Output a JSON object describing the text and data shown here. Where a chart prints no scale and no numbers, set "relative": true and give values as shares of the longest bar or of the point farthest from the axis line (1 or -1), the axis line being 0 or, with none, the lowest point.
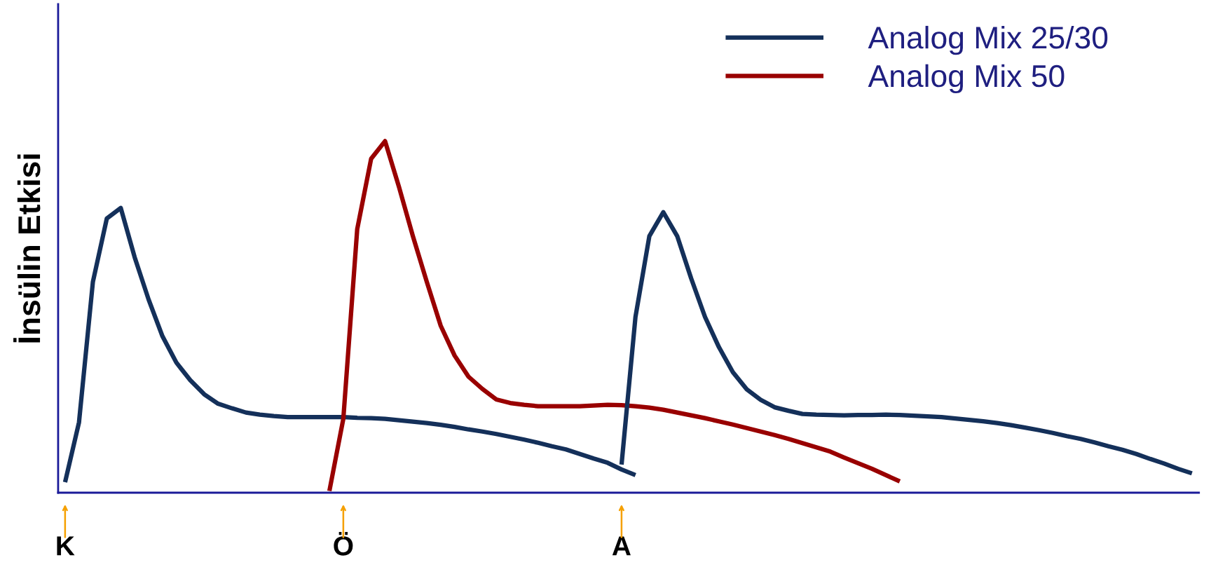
{
  "chart_data": {
    "type": "line",
    "relative": true,
    "ylabel": "İnsülin Etkisi",
    "categories": [
      "K",
      null,
      null,
      null,
      null,
      null,
      null,
      null,
      null,
      null,
      null,
      null,
      null,
      null,
      null,
      null,
      null,
      null,
      null,
      null,
      "Ö",
      null,
      null,
      null,
      null,
      null,
      null,
      null,
      null,
      null,
      null,
      null,
      null,
      null,
      null,
      null,
      null,
      null,
      null,
      null,
      "A",
      null,
      null,
      null,
      null,
      null,
      null,
      null,
      null,
      null,
      null,
      null,
      null,
      null,
      null,
      null,
      null,
      null,
      null,
      null,
      null,
      null,
      null,
      null,
      null,
      null,
      null,
      null,
      null,
      null,
      null,
      null,
      null,
      null,
      null,
      null,
      null,
      null,
      null,
      null,
      null,
      null
    ],
    "legend": "top right",
    "grid": false,
    "marker": "none",
    "line_style": "solid",
    "series": [
      {
        "name": "Analog Mix 25/30",
        "color": "#14305a",
        "values": [
          0.03,
          0.2,
          0.6,
          0.78,
          0.81,
          0.67,
          0.55,
          0.445,
          0.37,
          0.32,
          0.28,
          0.253,
          0.24,
          0.228,
          0.222,
          0.218,
          0.215,
          0.215,
          0.215,
          0.215,
          0.215,
          0.213,
          0.212,
          0.21,
          0.206,
          0.202,
          0.198,
          0.193,
          0.187,
          0.18,
          0.174,
          0.167,
          0.159,
          0.151,
          0.142,
          0.132,
          0.123,
          0.11,
          0.097,
          0.085,
          0.066,
          0.05,
          null,
          null,
          null,
          null,
          null,
          null,
          null,
          null,
          null,
          null,
          null,
          null,
          null,
          null,
          null,
          null,
          null,
          null,
          null,
          null,
          null,
          null,
          null,
          null,
          null,
          null,
          null,
          null,
          null,
          null,
          null,
          null,
          null,
          null,
          null,
          null,
          null,
          null,
          null,
          null
        ]
      },
      {
        "name": "Analog Mix 50",
        "color": "#990000",
        "values": [
          null,
          null,
          null,
          null,
          null,
          null,
          null,
          null,
          null,
          null,
          null,
          null,
          null,
          null,
          null,
          null,
          null,
          null,
          null,
          0.005,
          0.21,
          0.75,
          0.95,
          1,
          0.87,
          0.73,
          0.6,
          0.475,
          0.39,
          0.33,
          0.295,
          0.265,
          0.255,
          0.25,
          0.246,
          0.246,
          0.246,
          0.246,
          0.248,
          0.25,
          0.249,
          0.246,
          0.242,
          0.236,
          0.228,
          0.22,
          0.212,
          0.203,
          0.194,
          0.184,
          0.174,
          0.164,
          0.153,
          0.141,
          0.129,
          0.117,
          0.1,
          0.084,
          0.068,
          0.05,
          0.032,
          null,
          null,
          null,
          null,
          null,
          null,
          null,
          null,
          null,
          null,
          null,
          null,
          null,
          null,
          null,
          null,
          null,
          null,
          null,
          null,
          null
        ]
      },
      {
        "color": "#14305a",
        "values": [
          null,
          null,
          null,
          null,
          null,
          null,
          null,
          null,
          null,
          null,
          null,
          null,
          null,
          null,
          null,
          null,
          null,
          null,
          null,
          null,
          null,
          null,
          null,
          null,
          null,
          null,
          null,
          null,
          null,
          null,
          null,
          null,
          null,
          null,
          null,
          null,
          null,
          null,
          null,
          null,
          0.08,
          0.5,
          0.73,
          0.798,
          0.73,
          0.61,
          0.5,
          0.414,
          0.343,
          0.294,
          0.264,
          0.243,
          0.233,
          0.224,
          0.222,
          0.221,
          0.22,
          0.221,
          0.221,
          0.222,
          0.221,
          0.219,
          0.217,
          0.215,
          0.211,
          0.207,
          0.203,
          0.198,
          0.192,
          0.185,
          0.178,
          0.17,
          0.161,
          0.153,
          0.143,
          0.132,
          0.122,
          0.11,
          0.096,
          0.083,
          0.068,
          0.055
        ]
      }
    ]
  }
}
